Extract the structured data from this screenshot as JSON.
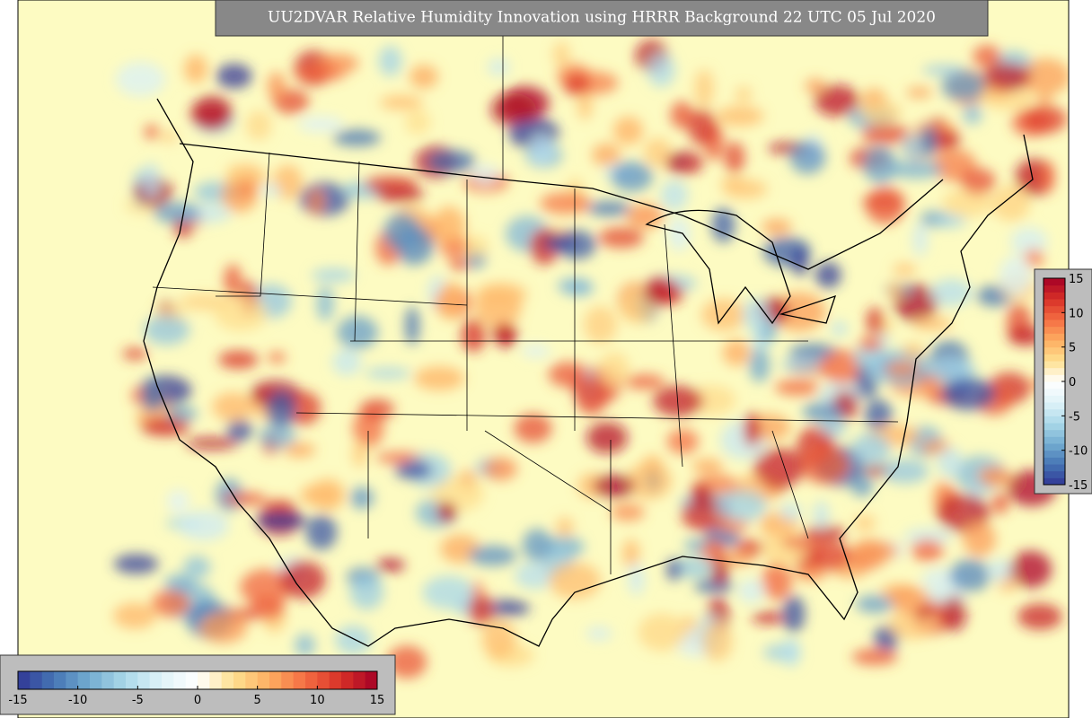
{
  "title": "UU2DVAR Relative Humidity Innovation using HRRR Background 22 UTC 05 Jul 2020",
  "colorbar_right": {
    "range": [
      -15,
      15
    ],
    "ticks": [
      -15,
      -10,
      -5,
      0,
      5,
      10,
      15
    ]
  },
  "colorbar_bottom": {
    "range": [
      -15,
      15
    ],
    "ticks": [
      -15,
      -10,
      -5,
      0,
      5,
      10,
      15
    ]
  },
  "palette": [
    "#313695",
    "#4575b4",
    "#74add1",
    "#abd9e9",
    "#e0f3f8",
    "#ffffff",
    "#fee090",
    "#fdae61",
    "#f46d43",
    "#d73027",
    "#a50026"
  ],
  "background": "#fdfbc2"
}
